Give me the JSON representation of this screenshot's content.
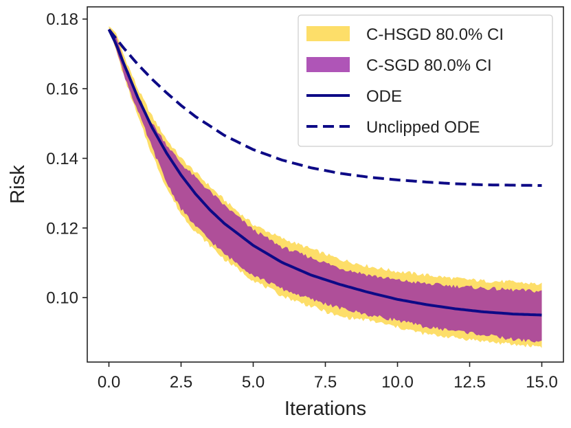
{
  "chart_data": {
    "type": "line",
    "title": "",
    "xlabel": "Iterations",
    "ylabel": "Risk",
    "xlim": [
      -0.75,
      15.75
    ],
    "ylim": [
      0.0815,
      0.1835
    ],
    "xticks": [
      0.0,
      2.5,
      5.0,
      7.5,
      10.0,
      12.5,
      15.0
    ],
    "xtick_labels": [
      "0.0",
      "2.5",
      "5.0",
      "7.5",
      "10.0",
      "12.5",
      "15.0"
    ],
    "yticks": [
      0.1,
      0.12,
      0.14,
      0.16,
      0.18
    ],
    "ytick_labels": [
      "0.10",
      "0.12",
      "0.14",
      "0.16",
      "0.18"
    ],
    "grid": false,
    "legend_position": "top-right",
    "series": [
      {
        "name": "C-HSGD 80.0% CI",
        "kind": "band",
        "color": "#fdd84f",
        "x": [
          0.0,
          0.25,
          0.5,
          1.0,
          1.5,
          2.0,
          2.5,
          3.0,
          4.0,
          5.0,
          6.0,
          7.0,
          8.0,
          9.0,
          10.0,
          11.0,
          12.0,
          13.0,
          14.0,
          15.0
        ],
        "lower": [
          0.177,
          0.171,
          0.164,
          0.152,
          0.141,
          0.1315,
          0.124,
          0.119,
          0.111,
          0.105,
          0.1005,
          0.0975,
          0.0945,
          0.0935,
          0.0915,
          0.0895,
          0.0885,
          0.0875,
          0.0865,
          0.086
        ],
        "upper": [
          0.178,
          0.176,
          0.17,
          0.16,
          0.152,
          0.1455,
          0.14,
          0.136,
          0.128,
          0.121,
          0.117,
          0.114,
          0.111,
          0.109,
          0.1075,
          0.1065,
          0.1055,
          0.1048,
          0.1045,
          0.1038
        ]
      },
      {
        "name": "C-SGD 80.0% CI",
        "kind": "band",
        "color": "#9b2aa5",
        "x": [
          0.0,
          0.25,
          0.5,
          1.0,
          1.5,
          2.0,
          2.5,
          3.0,
          4.0,
          5.0,
          6.0,
          7.0,
          8.0,
          9.0,
          10.0,
          11.0,
          12.0,
          13.0,
          14.0,
          15.0
        ],
        "lower": [
          0.177,
          0.1715,
          0.1645,
          0.1535,
          0.143,
          0.133,
          0.1255,
          0.1205,
          0.1125,
          0.1065,
          0.1025,
          0.0995,
          0.097,
          0.095,
          0.0935,
          0.0915,
          0.0905,
          0.0893,
          0.088,
          0.0873
        ],
        "upper": [
          0.177,
          0.175,
          0.1685,
          0.158,
          0.15,
          0.144,
          0.1385,
          0.1345,
          0.1265,
          0.1195,
          0.1145,
          0.1115,
          0.1085,
          0.1065,
          0.105,
          0.104,
          0.1033,
          0.1027,
          0.1022,
          0.1018
        ]
      },
      {
        "name": "ODE",
        "kind": "line",
        "style": "solid",
        "color": "#0d0a86",
        "x": [
          0.0,
          0.25,
          0.5,
          0.75,
          1.0,
          1.5,
          2.0,
          2.5,
          3.0,
          3.5,
          4.0,
          5.0,
          6.0,
          7.0,
          8.0,
          9.0,
          10.0,
          11.0,
          12.0,
          13.0,
          14.0,
          15.0
        ],
        "y": [
          0.177,
          0.1728,
          0.1675,
          0.1625,
          0.1575,
          0.1488,
          0.1415,
          0.1352,
          0.1298,
          0.1252,
          0.1213,
          0.115,
          0.1101,
          0.1065,
          0.1038,
          0.1015,
          0.0995,
          0.098,
          0.0968,
          0.0959,
          0.0953,
          0.095
        ]
      },
      {
        "name": "Unclipped ODE",
        "kind": "line",
        "style": "dashed",
        "color": "#0d0a86",
        "x": [
          0.0,
          0.5,
          1.0,
          1.5,
          2.0,
          2.5,
          3.0,
          4.0,
          5.0,
          6.0,
          7.0,
          8.0,
          9.0,
          10.0,
          11.0,
          12.0,
          13.0,
          14.0,
          15.0
        ],
        "y": [
          0.177,
          0.1718,
          0.167,
          0.1627,
          0.1588,
          0.1552,
          0.152,
          0.1466,
          0.1425,
          0.1395,
          0.1373,
          0.1357,
          0.1346,
          0.1338,
          0.1332,
          0.1327,
          0.1324,
          0.1323,
          0.1322
        ]
      }
    ]
  }
}
